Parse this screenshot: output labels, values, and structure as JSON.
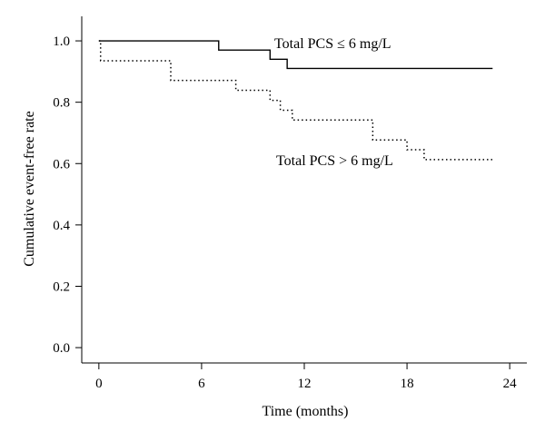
{
  "chart_data": {
    "type": "line",
    "title": "",
    "xlabel": "Time (months)",
    "ylabel": "Cumulative event-free rate",
    "xlim": [
      -1,
      25
    ],
    "ylim": [
      -0.05,
      1.08
    ],
    "x_ticks": [
      0,
      6,
      12,
      18,
      24
    ],
    "x_tick_labels": [
      "0",
      "6",
      "12",
      "18",
      "24"
    ],
    "y_ticks": [
      0.0,
      0.2,
      0.4,
      0.6,
      0.8,
      1.0
    ],
    "y_tick_labels": [
      "0.0",
      "0.2",
      "0.4",
      "0.6",
      "0.8",
      "1.0"
    ],
    "grid": false,
    "series": [
      {
        "name": "Total PCS ≤ 6 mg/L",
        "style": "solid",
        "color": "#000000",
        "step": true,
        "x": [
          0,
          7,
          10,
          11,
          23
        ],
        "y": [
          1.0,
          0.97,
          0.94,
          0.91,
          0.91
        ]
      },
      {
        "name": "Total PCS > 6 mg/L",
        "style": "dotted",
        "color": "#000000",
        "step": true,
        "x": [
          0,
          0.1,
          4.2,
          8,
          10,
          10.6,
          11.3,
          16,
          18,
          19,
          23
        ],
        "y": [
          1.0,
          0.935,
          0.871,
          0.839,
          0.806,
          0.774,
          0.742,
          0.677,
          0.645,
          0.613,
          0.613
        ]
      }
    ],
    "annotations": [
      {
        "text": "Total PCS ≤ 6 mg/L",
        "series": 0
      },
      {
        "text": "Total PCS > 6 mg/L",
        "series": 1
      }
    ]
  }
}
